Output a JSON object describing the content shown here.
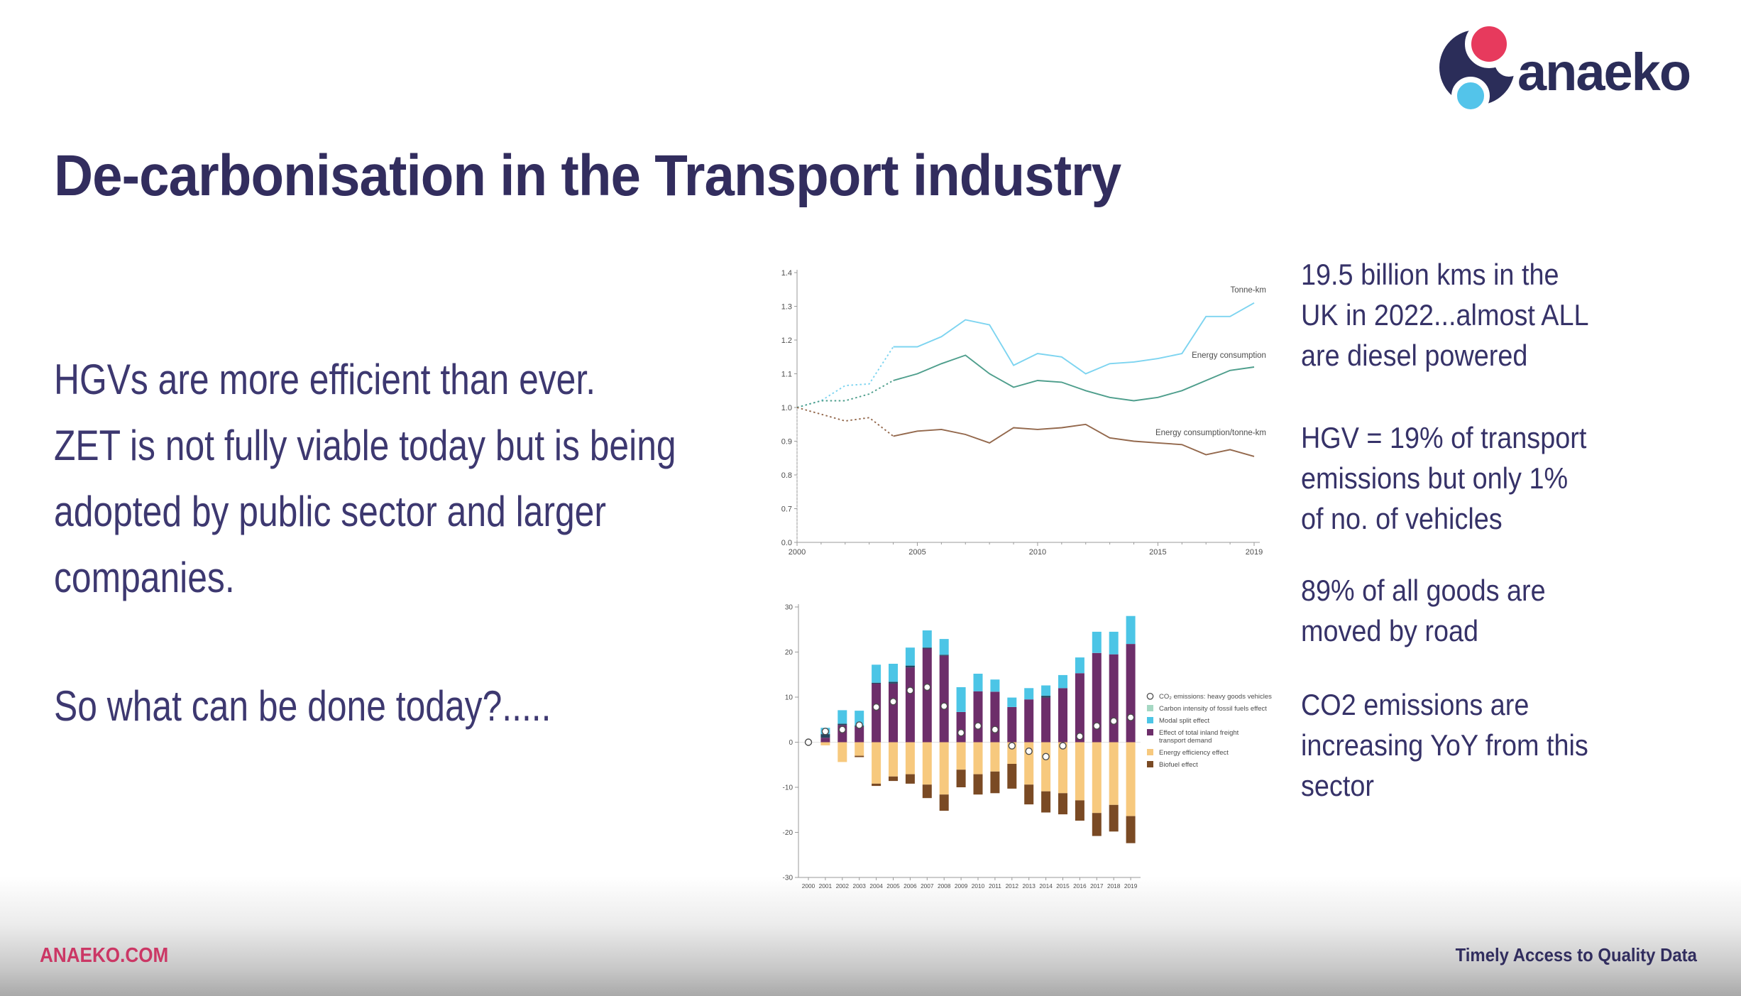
{
  "title": "De-carbonisation in the Transport industry",
  "logo": {
    "text": "anaeko",
    "navy": "#2b2d59",
    "pink": "#e73a5d",
    "blue": "#53c4ea"
  },
  "left_column": {
    "paragraph": [
      "HGVs are more efficient than ever.",
      "ZET is not fully viable today but is being",
      "adopted by public sector and larger",
      "companies."
    ],
    "question": "So what can be done today?....."
  },
  "right_column": {
    "paragraphs": [
      [
        "19.5 billion kms in the",
        "UK in 2022...almost ALL",
        "are diesel powered"
      ],
      [
        "HGV = 19% of transport",
        "emissions but only 1%",
        "of no. of vehicles"
      ],
      [
        "89% of all goods are",
        "moved by road"
      ],
      [
        "CO2 emissions are",
        "increasing YoY from this",
        "sector"
      ]
    ]
  },
  "footer": {
    "site": "ANAEKO.COM",
    "tagline": "Timely Access to Quality Data"
  },
  "chart_data": [
    {
      "type": "line",
      "title": "",
      "x": [
        2000,
        2001,
        2002,
        2003,
        2004,
        2005,
        2006,
        2007,
        2008,
        2009,
        2010,
        2011,
        2012,
        2013,
        2014,
        2015,
        2016,
        2017,
        2018,
        2019
      ],
      "x_tick_labels": [
        2000,
        2005,
        2010,
        2015,
        2019
      ],
      "y_ticks": [
        1.4,
        1.3,
        1.2,
        1.1,
        1.0,
        0.9,
        0.8,
        0.7,
        0.0
      ],
      "broken_axis": true,
      "dotted_until_year": 2004,
      "grid": false,
      "series": [
        {
          "name": "Tonne-km",
          "color": "#7dd4f0",
          "values": [
            1.0,
            1.02,
            1.065,
            1.07,
            1.18,
            1.18,
            1.21,
            1.26,
            1.245,
            1.125,
            1.16,
            1.15,
            1.1,
            1.13,
            1.135,
            1.145,
            1.16,
            1.27,
            1.27,
            1.31
          ],
          "label_year": 2019.5,
          "label_value": 1.341
        },
        {
          "name": "Energy consumption",
          "color": "#4e9e8c",
          "values": [
            1.0,
            1.02,
            1.02,
            1.04,
            1.08,
            1.1,
            1.13,
            1.155,
            1.1,
            1.06,
            1.08,
            1.075,
            1.05,
            1.03,
            1.02,
            1.03,
            1.05,
            1.08,
            1.11,
            1.12
          ],
          "label_year": 2019.5,
          "label_value": 1.147
        },
        {
          "name": "Energy consumption/tonne-km",
          "color": "#93684c",
          "values": [
            1.0,
            0.98,
            0.96,
            0.97,
            0.915,
            0.93,
            0.935,
            0.92,
            0.895,
            0.94,
            0.935,
            0.94,
            0.95,
            0.91,
            0.9,
            0.895,
            0.89,
            0.86,
            0.875,
            0.855
          ],
          "label_year": 2019.5,
          "label_value": 0.918
        }
      ]
    },
    {
      "type": "stacked_bar_with_scatter",
      "title": "",
      "categories": [
        2000,
        2001,
        2002,
        2003,
        2004,
        2005,
        2006,
        2007,
        2008,
        2009,
        2010,
        2011,
        2012,
        2013,
        2014,
        2015,
        2016,
        2017,
        2018,
        2019
      ],
      "ylim": [
        -30,
        30
      ],
      "y_tick_step": 10,
      "grid": "zero-line-only",
      "legend_position": "right",
      "series": [
        {
          "name": "Effect of total inland freight transport demand",
          "color": "#6d2e6a",
          "values": [
            0,
            1.0,
            3.8,
            3.4,
            13.0,
            13.0,
            16.6,
            20.8,
            19.2,
            6.7,
            11.3,
            11.2,
            7.8,
            9.5,
            9.9,
            12.0,
            15.3,
            19.8,
            19.5,
            21.8
          ]
        },
        {
          "name": "Carbon intensity of fossil fuels effect",
          "color": "#a5d8c3",
          "bar_color": "#24455e",
          "values": [
            0,
            0.8,
            0.3,
            0.3,
            0.2,
            0.4,
            0.4,
            0.2,
            0.2,
            0,
            0,
            0,
            0,
            0,
            0.4,
            0,
            0,
            0,
            0,
            0
          ]
        },
        {
          "name": "Modal split effect",
          "color": "#4cc5e6",
          "values": [
            0,
            1.4,
            3.0,
            3.3,
            4.0,
            4.0,
            4.0,
            3.8,
            3.5,
            5.5,
            3.9,
            2.7,
            2.1,
            2.5,
            2.3,
            2.9,
            3.5,
            4.7,
            5.0,
            6.2
          ]
        },
        {
          "name": "Energy efficiency effect",
          "color": "#f7c97e",
          "values": [
            0,
            -0.7,
            -4.4,
            -3.0,
            -9.2,
            -7.6,
            -7.1,
            -9.4,
            -11.6,
            -6.1,
            -7.1,
            -6.5,
            -4.8,
            -9.4,
            -10.9,
            -11.3,
            -12.9,
            -15.7,
            -13.9,
            -16.4
          ]
        },
        {
          "name": "Biofuel effect",
          "color": "#7a4a24",
          "values": [
            0,
            0,
            0,
            -0.3,
            -0.5,
            -1.0,
            -2.1,
            -3.0,
            -3.6,
            -3.9,
            -4.5,
            -4.8,
            -5.5,
            -4.4,
            -4.7,
            -4.7,
            -4.5,
            -5.1,
            -5.9,
            -6.0
          ]
        }
      ],
      "scatter": {
        "name": "CO₂ emissions: heavy goods vehicles",
        "values": [
          0,
          2.4,
          2.8,
          3.8,
          7.8,
          9.0,
          11.5,
          12.2,
          8.0,
          2.1,
          3.6,
          2.8,
          -0.8,
          -2.0,
          -3.2,
          -0.8,
          1.3,
          3.6,
          4.7,
          5.5
        ]
      },
      "legend": [
        {
          "symbol": "circle",
          "label": "CO₂ emissions: heavy goods vehicles"
        },
        {
          "color": "#a5d8c3",
          "label": "Carbon intensity of fossil fuels effect"
        },
        {
          "color": "#4cc5e6",
          "label": "Modal split effect"
        },
        {
          "color": "#6d2e6a",
          "label": "Effect of total inland freight\ntransport demand"
        },
        {
          "color": "#f7c97e",
          "label": "Energy efficiency effect"
        },
        {
          "color": "#7a4a24",
          "label": "Biofuel effect"
        }
      ]
    }
  ]
}
